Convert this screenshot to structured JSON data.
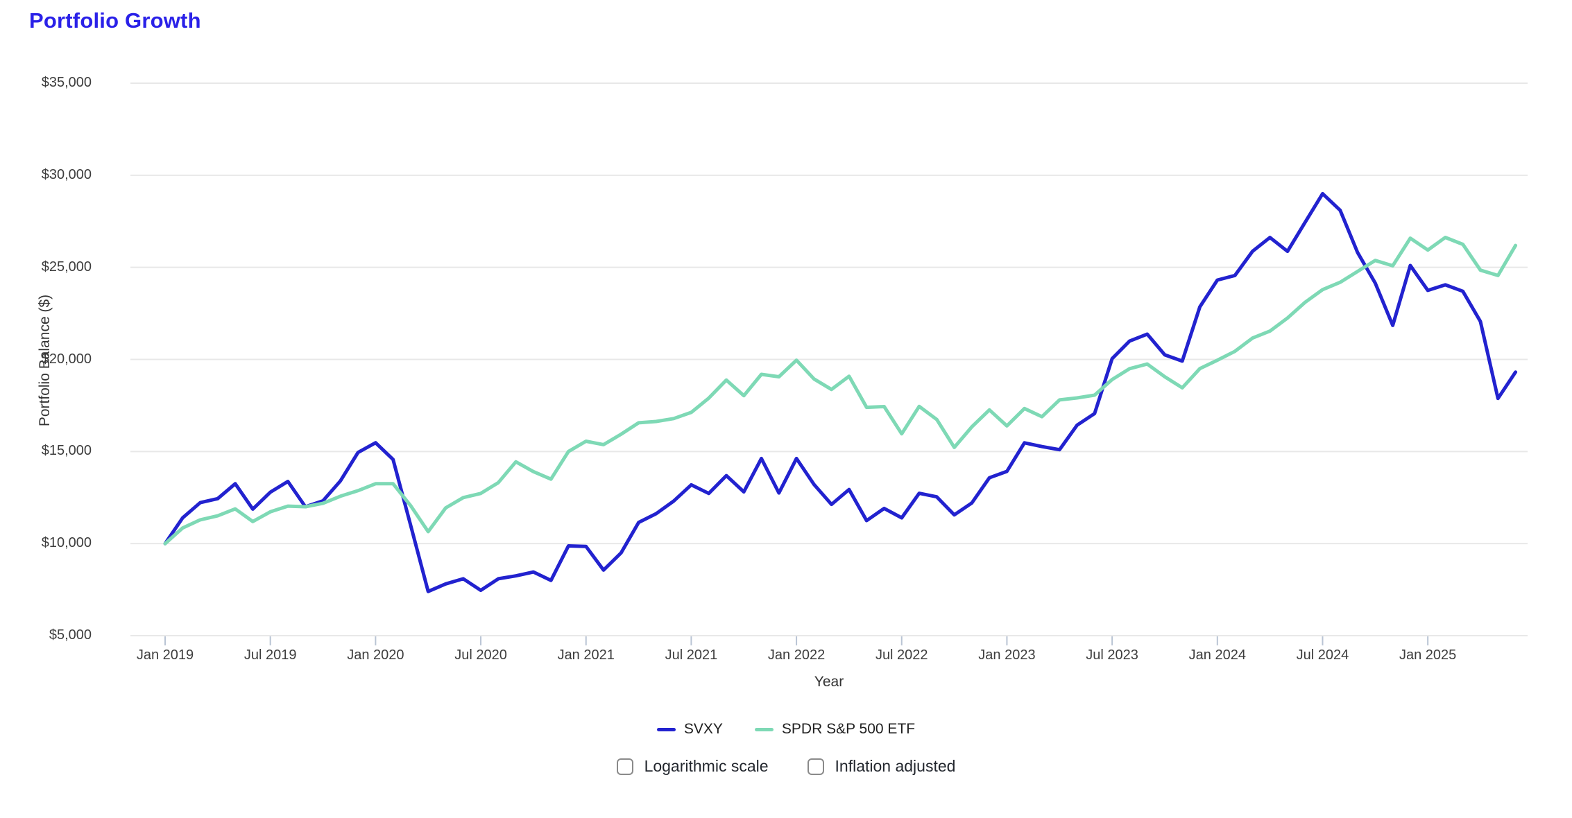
{
  "page": {
    "title": "Portfolio Growth",
    "title_color": "#2a21e8",
    "background_color": "#ffffff",
    "gridline_color": "#e8e8e8",
    "tick_mark_color": "#b9c4d4"
  },
  "chart_data": {
    "type": "line",
    "title": "Portfolio Growth",
    "xlabel": "Year",
    "ylabel": "Portfolio Balance ($)",
    "x_start": "Jan 2019",
    "frequency": "monthly",
    "x_tick_labels": [
      "Jan 2019",
      "Jul 2019",
      "Jan 2020",
      "Jul 2020",
      "Jan 2021",
      "Jul 2021",
      "Jan 2022",
      "Jul 2022",
      "Jan 2023",
      "Jul 2023",
      "Jan 2024",
      "Jul 2024",
      "Jan 2025"
    ],
    "x_tick_every_n_points": 6,
    "y_ticks": [
      5000,
      10000,
      15000,
      20000,
      25000,
      30000,
      35000
    ],
    "y_tick_labels": [
      "$5,000",
      "$10,000",
      "$15,000",
      "$20,000",
      "$25,000",
      "$30,000",
      "$35,000"
    ],
    "ylim": [
      5000,
      35000
    ],
    "grid": "horizontal",
    "legend_position": "bottom",
    "series": [
      {
        "name": "SVXY",
        "color": "#2222cf",
        "values": [
          10000,
          11400,
          12225,
          12440,
          13250,
          11875,
          12790,
          13375,
          12000,
          12320,
          13410,
          14950,
          15475,
          14570,
          11000,
          7400,
          7810,
          8090,
          7460,
          8090,
          8250,
          8460,
          8000,
          9875,
          9850,
          8560,
          9500,
          11150,
          11625,
          12310,
          13190,
          12725,
          13690,
          12810,
          14620,
          12750,
          14620,
          13210,
          12130,
          12940,
          11250,
          11910,
          11400,
          12730,
          12540,
          11560,
          12210,
          13575,
          13920,
          15470,
          15270,
          15100,
          16430,
          17060,
          20040,
          21000,
          21375,
          20250,
          19910,
          22850,
          24310,
          24560,
          25870,
          26620,
          25870,
          27440,
          29000,
          28100,
          25800,
          24150,
          21850,
          25100,
          23750,
          24050,
          23700,
          22060,
          17880,
          19310
        ]
      },
      {
        "name": "SPDR S&P 500 ETF",
        "color": "#7ed9b5",
        "values": [
          10000,
          10850,
          11290,
          11510,
          11885,
          11200,
          11725,
          12035,
          12000,
          12185,
          12575,
          12875,
          13250,
          13250,
          12060,
          10650,
          11940,
          12500,
          12725,
          13310,
          14440,
          13910,
          13500,
          15000,
          15560,
          15375,
          15940,
          16560,
          16630,
          16790,
          17125,
          17900,
          18880,
          18030,
          19190,
          19060,
          19960,
          18940,
          18370,
          19090,
          17400,
          17440,
          15960,
          17450,
          16740,
          15225,
          16340,
          17260,
          16390,
          17335,
          16890,
          17800,
          17910,
          18060,
          18910,
          19500,
          19750,
          19060,
          18460,
          19500,
          19960,
          20440,
          21160,
          21540,
          22250,
          23100,
          23790,
          24190,
          24780,
          25375,
          25085,
          26585,
          25940,
          26625,
          26250,
          24850,
          24560,
          26190
        ]
      }
    ]
  },
  "controls": {
    "checkboxes": [
      {
        "label": "Logarithmic scale",
        "checked": false
      },
      {
        "label": "Inflation adjusted",
        "checked": false
      }
    ]
  }
}
